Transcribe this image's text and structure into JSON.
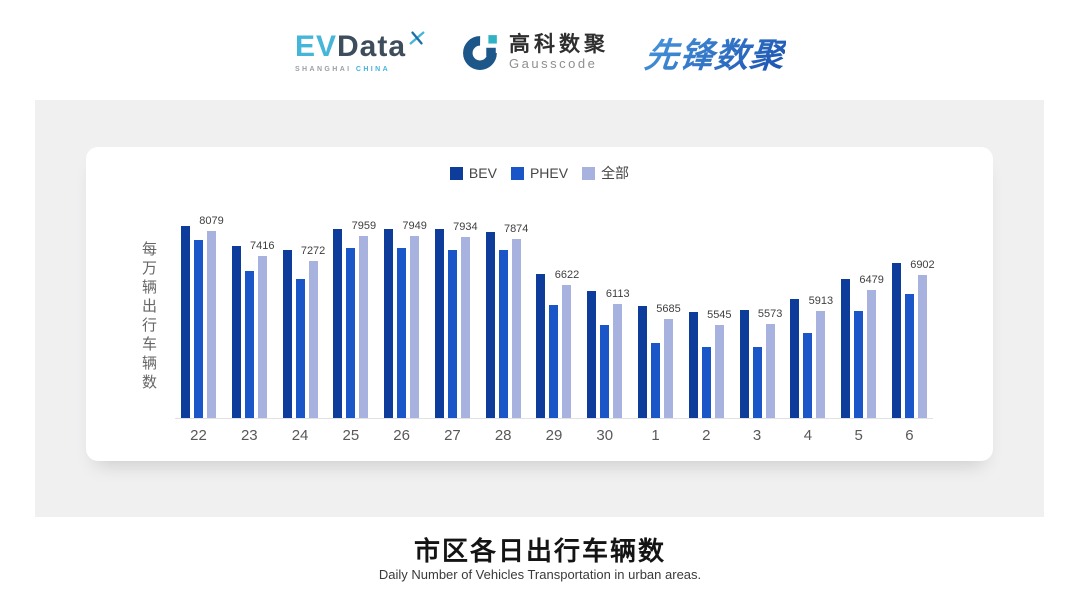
{
  "brand_colors": {
    "evdata-cyan": "#45b5da",
    "evdata-slate": "#3e4d5c",
    "gausscode-blue": "#1d5688",
    "gausscode-teal": "#2fb3c4",
    "xianfeng-blue-1": "#4a9be0",
    "xianfeng-blue-2": "#1b50ae"
  },
  "header": {
    "evdata": {
      "ev": "EV",
      "data": "Data",
      "sub_left": "SHANGHAI",
      "sub_right": "CHINA"
    },
    "gausscode": {
      "cn": "高科数聚",
      "en": "Gausscode"
    },
    "xianfeng": {
      "text": "先锋数聚"
    }
  },
  "chart_data": {
    "type": "bar",
    "categories": [
      "22",
      "23",
      "24",
      "25",
      "26",
      "27",
      "28",
      "29",
      "30",
      "1",
      "2",
      "3",
      "4",
      "5",
      "6"
    ],
    "series": [
      {
        "name": "BEV",
        "key": "bev",
        "color": "#0e3c9b",
        "values": [
          8215,
          7672,
          7563,
          8152,
          8133,
          8133,
          8060,
          6930,
          6458,
          6050,
          5887,
          5952,
          6251,
          6794,
          7218
        ]
      },
      {
        "name": "PHEV",
        "key": "phev",
        "color": "#1a56c8",
        "values": [
          7854,
          6993,
          6776,
          7636,
          7626,
          7582,
          7563,
          6088,
          5526,
          5045,
          4937,
          4920,
          5317,
          5914,
          6368
        ]
      },
      {
        "name": "全部",
        "key": "all",
        "color": "#a7b2de",
        "values": [
          8079,
          7416,
          7272,
          7959,
          7949,
          7934,
          7874,
          6622,
          6113,
          5685,
          5545,
          5573,
          5913,
          6479,
          6902
        ]
      }
    ],
    "value_labels_series": "全部",
    "value_labels": [
      8079,
      7416,
      7272,
      7959,
      7949,
      7934,
      7874,
      6622,
      6113,
      5685,
      5545,
      5573,
      5913,
      6479,
      6902
    ],
    "ylabel": "每万辆出行车辆数",
    "ylim": [
      3000,
      8500
    ],
    "legend_position": "top",
    "grid": false
  },
  "footer": {
    "title": "市区各日出行车辆数",
    "subtitle": "Daily Number of Vehicles Transportation in urban areas."
  }
}
